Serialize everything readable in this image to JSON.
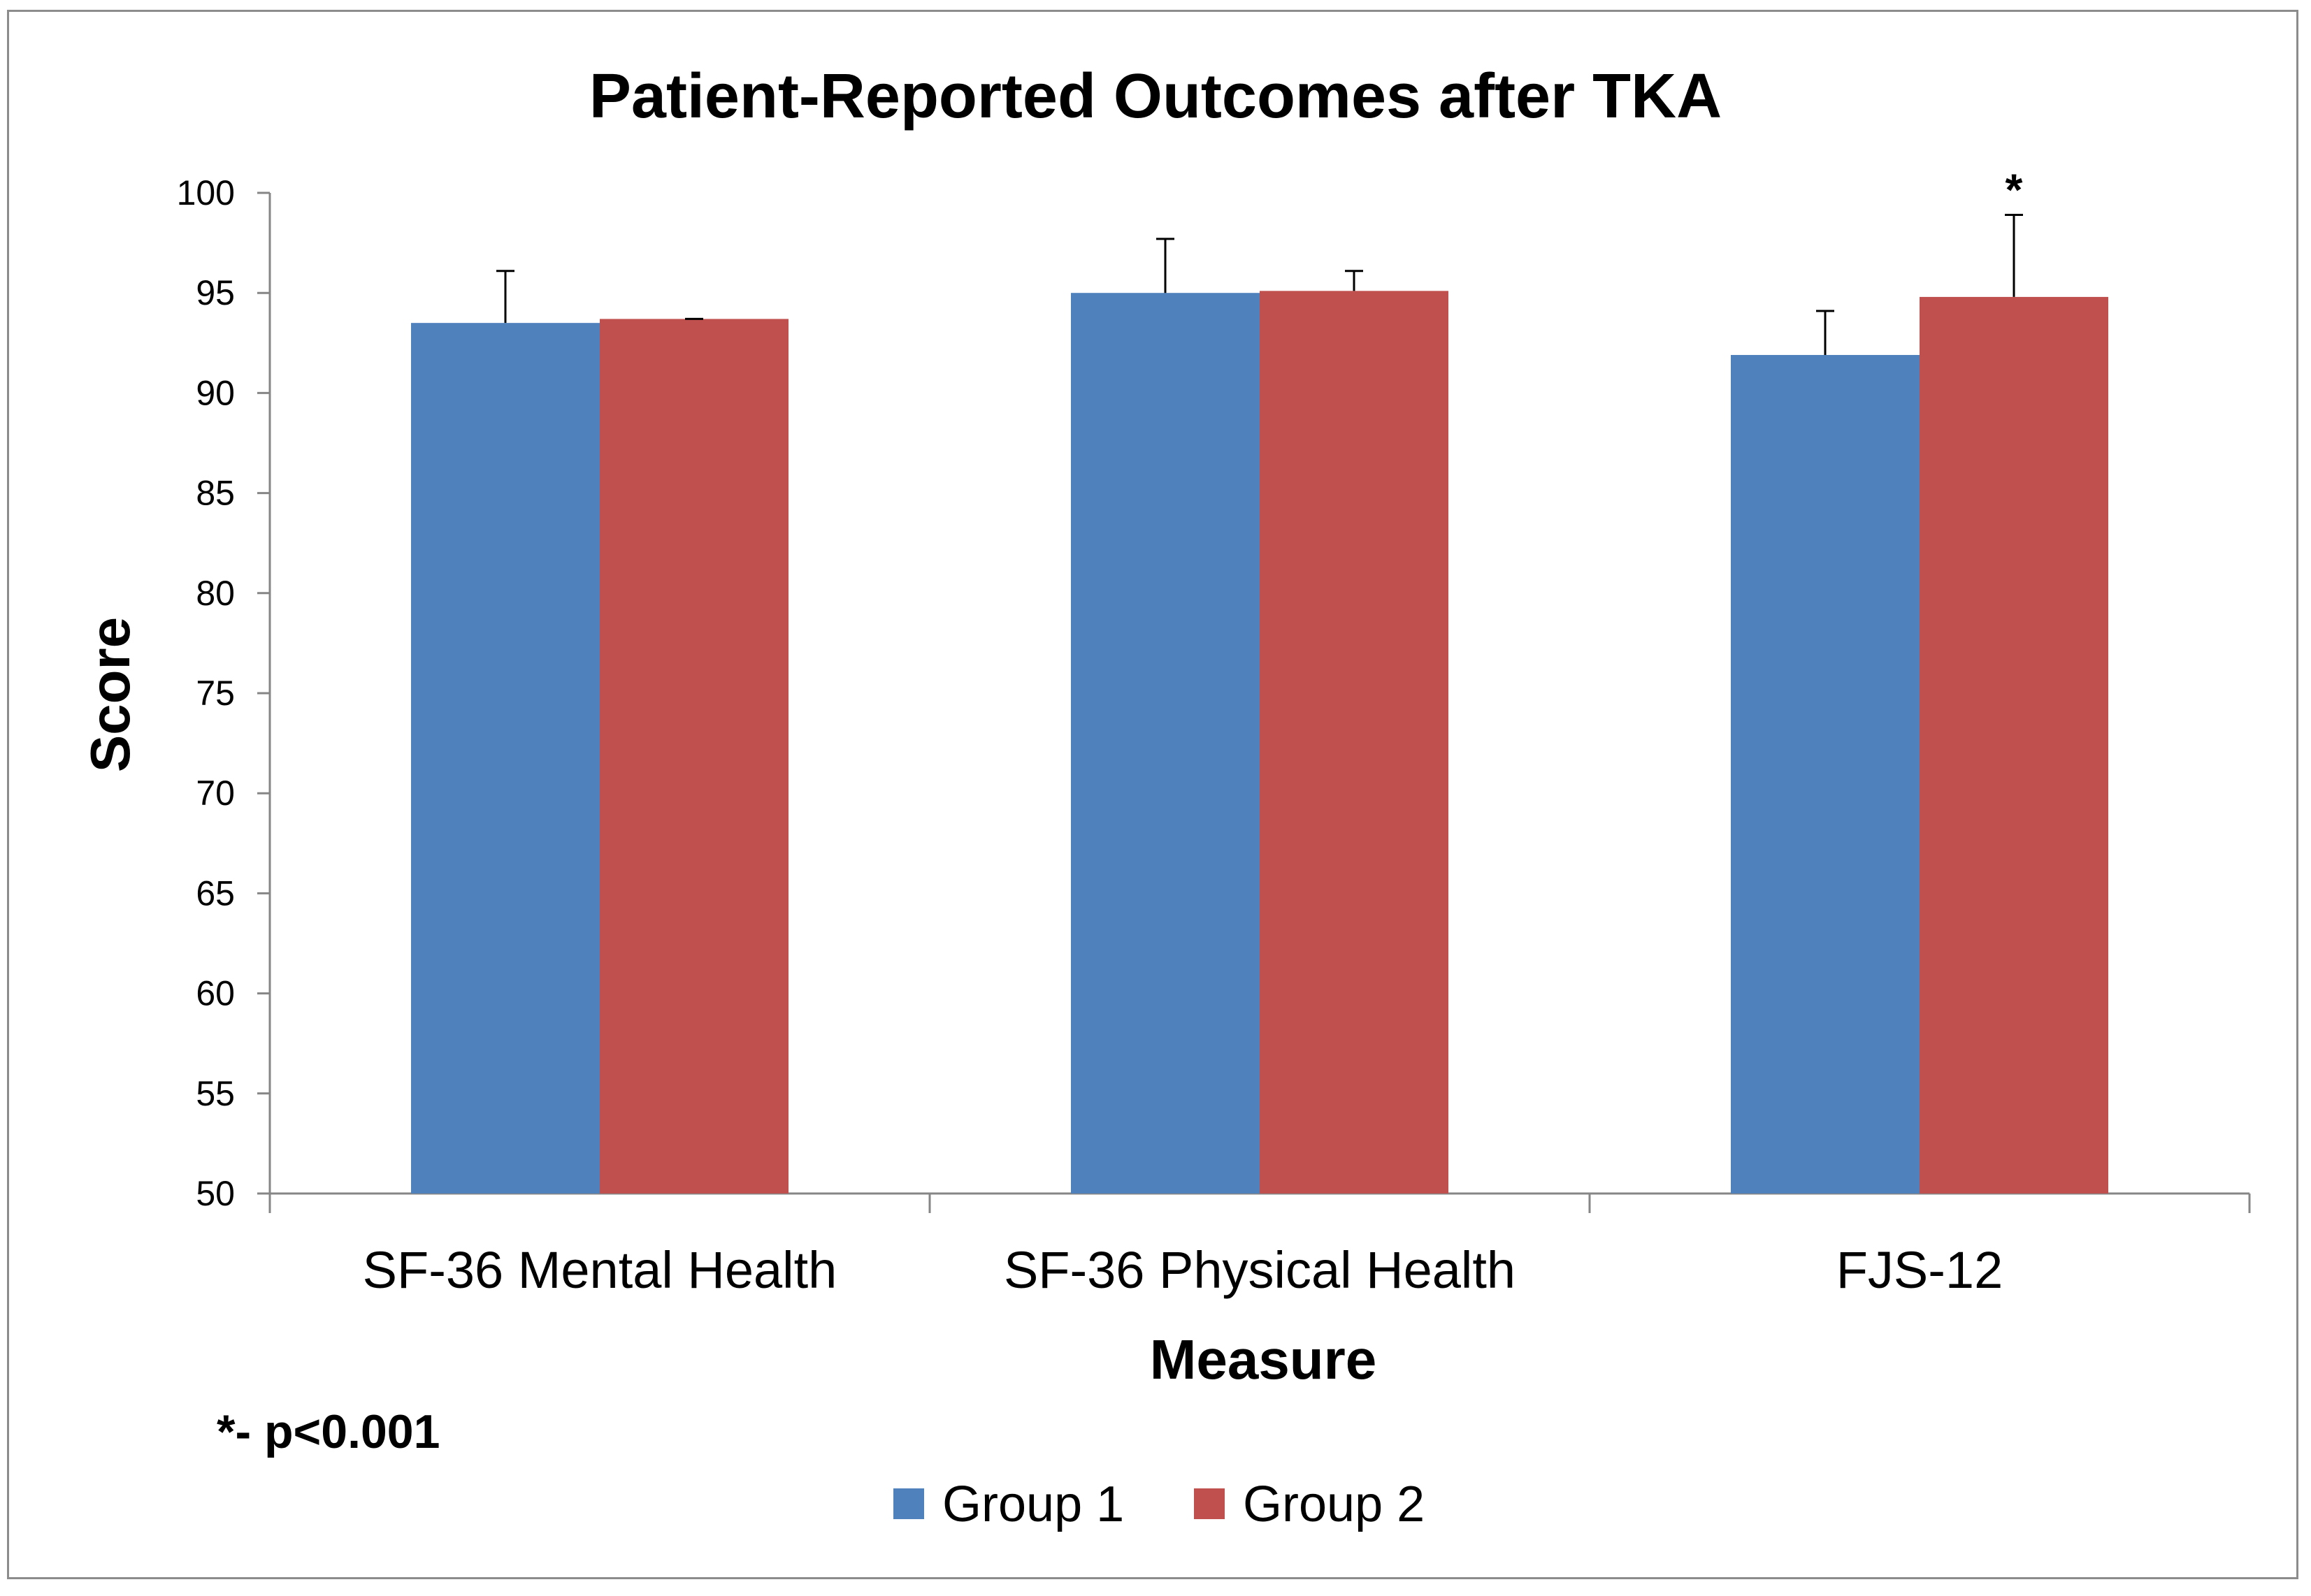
{
  "chart_data": {
    "type": "bar",
    "title": "Patient-Reported Outcomes after TKA",
    "xlabel": "Measure",
    "ylabel": "Score",
    "ylim": [
      50,
      100
    ],
    "yticks": [
      50,
      55,
      60,
      65,
      70,
      75,
      80,
      85,
      90,
      95,
      100
    ],
    "ytick_labels": [
      "50",
      "55",
      "60",
      "65",
      "70",
      "75",
      "80",
      "85",
      "90",
      "95",
      "100"
    ],
    "categories": [
      "SF-36 Mental Health",
      "SF-36 Physical Health",
      "FJS-12"
    ],
    "series": [
      {
        "name": "Group 1",
        "color": "#4f81bd",
        "values": [
          93.5,
          95.0,
          91.9
        ],
        "error": [
          2.6,
          2.7,
          2.2
        ]
      },
      {
        "name": "Group 2",
        "color": "#c0504d",
        "values": [
          93.7,
          95.1,
          94.8
        ],
        "error": [
          0.0,
          1.0,
          4.1
        ]
      }
    ],
    "significance": [
      {
        "category": "FJS-12",
        "series": "Group 2",
        "label": "*"
      }
    ],
    "footnote": "*- p<0.001",
    "legend_position": "bottom",
    "grid": false
  }
}
